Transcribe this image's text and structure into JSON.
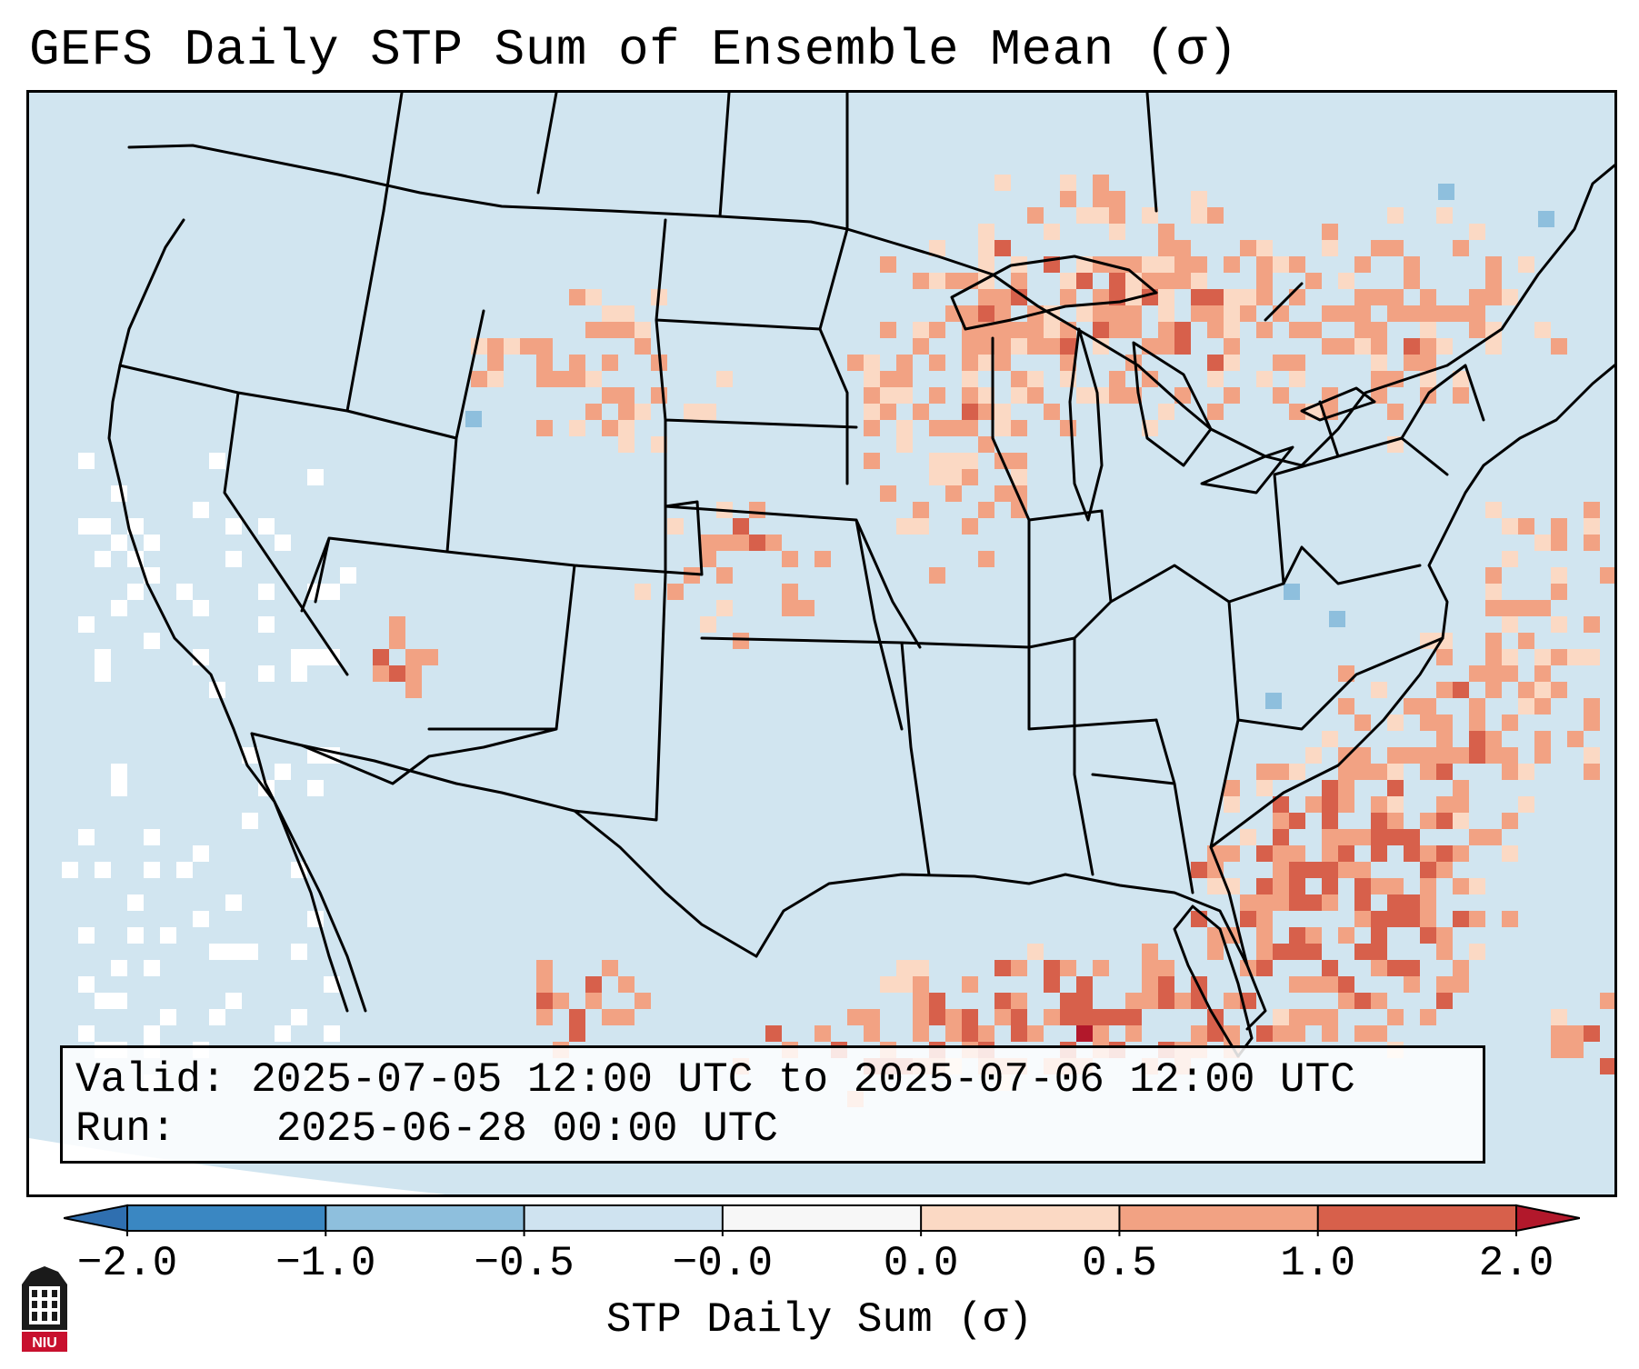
{
  "title": "GEFS Daily STP Sum of Ensemble Mean (σ)",
  "info": {
    "valid_label": "Valid:",
    "valid_value": "2025-07-05 12:00 UTC to 2025-07-06 12:00 UTC",
    "run_label": "Run:",
    "run_value": "2025-06-28 00:00 UTC"
  },
  "colorbar": {
    "label": "STP Daily Sum (σ)",
    "ticks": [
      "−2.0",
      "−1.0",
      "−0.5",
      "−0.0",
      "0.0",
      "0.5",
      "1.0",
      "2.0"
    ],
    "colors": [
      "#3a87c2",
      "#8ebfdd",
      "#cfe3f0",
      "#f7f7f7",
      "#fbd9c4",
      "#f2a283",
      "#d7604b",
      "#b2182b"
    ],
    "extend_low_color": "#2f6fb0",
    "extend_high_color": "#b2182b"
  },
  "map": {
    "background_color": "#d1e5f0",
    "neutral_color": "#ffffff",
    "field_levels": [
      "light-salmon",
      "salmon",
      "red",
      "dark-red",
      "light-blue"
    ]
  },
  "logo": {
    "text": "NIU",
    "color": "#c8102e"
  }
}
